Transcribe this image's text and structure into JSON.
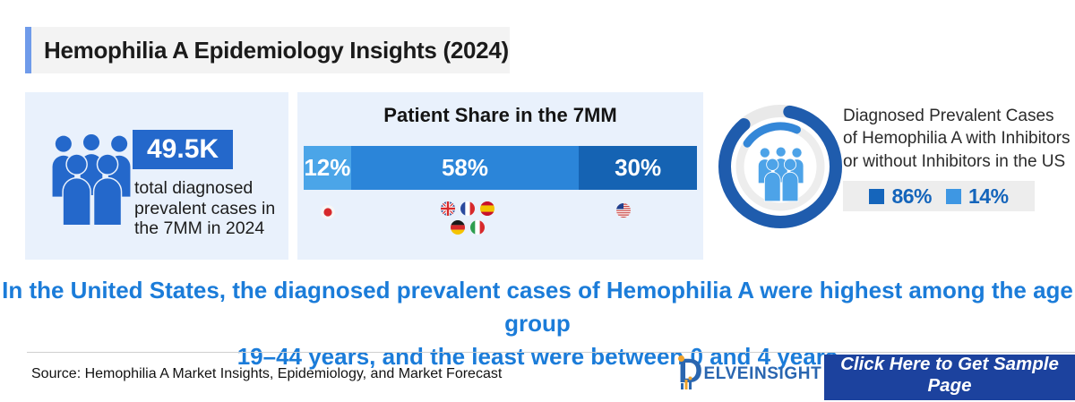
{
  "title": "Hemophilia A Epidemiology Insights (2024)",
  "theme": {
    "primary_blue": "#2468cb",
    "panel_bg": "#e9f1fc",
    "headline_blue": "#1b7cd9",
    "button_blue": "#1c429e",
    "title_accent": "#6f9bea",
    "logo_blue": "#2a66b0",
    "logo_orange": "#f0a32c"
  },
  "stat_panel": {
    "icon": "people-group-icon",
    "value": "49.5K",
    "description": "total diagnosed prevalent cases in the 7MM in 2024"
  },
  "patient_share": {
    "title": "Patient Share in the 7MM",
    "segments": [
      {
        "label": "12%",
        "value": 12,
        "color": "#4ba5e8",
        "flags": [
          "japan-flag-icon"
        ]
      },
      {
        "label": "58%",
        "value": 58,
        "color": "#2b85d9",
        "flags": [
          "uk-flag-icon",
          "france-flag-icon",
          "spain-flag-icon",
          "germany-flag-icon",
          "italy-flag-icon"
        ]
      },
      {
        "label": "30%",
        "value": 30,
        "color": "#1563b3",
        "flags": [
          "us-flag-icon"
        ]
      }
    ]
  },
  "inhibitors": {
    "icon": "people-group-icon",
    "description": "Diagnosed Prevalent Cases of Hemophilia A with Inhibitors or without Inhibitors in the US",
    "legend": [
      {
        "label": "86%",
        "value": 86,
        "color": "#1565bb"
      },
      {
        "label": "14%",
        "value": 14,
        "color": "#3e97e3"
      }
    ]
  },
  "headline_line1": "In the United States, the diagnosed prevalent cases of Hemophilia A were highest among the age group",
  "headline_line2": "19–44 years, and the least were between 0 and 4 years",
  "footer": {
    "source": "Source: Hemophilia A Market Insights, Epidemiology, and Market Forecast",
    "logo_d": "D",
    "logo_rest": "ELVEINSIGHT",
    "cta_label": "Click Here to Get Sample Page"
  },
  "chart_data": [
    {
      "type": "bar",
      "subtype": "horizontal-stacked",
      "title": "Patient Share in the 7MM",
      "categories": [
        "Japan",
        "Germany, France, Spain, Italy and UK",
        "United States"
      ],
      "values": [
        12,
        58,
        30
      ],
      "unit": "%",
      "colors": [
        "#4ba5e8",
        "#2b85d9",
        "#1563b3"
      ],
      "data_labels": [
        "12%",
        "58%",
        "30%"
      ],
      "xlim": [
        0,
        100
      ],
      "grid": false,
      "legend_position": "flags-below-segments"
    },
    {
      "type": "pie",
      "subtype": "donut",
      "title": "Diagnosed Prevalent Cases of Hemophilia A with Inhibitors or without Inhibitors in the US",
      "labels": [
        "86%",
        "14%"
      ],
      "values": [
        86,
        14
      ],
      "colors": [
        "#1f5cad",
        "#3487d8"
      ],
      "legend_position": "right"
    }
  ]
}
